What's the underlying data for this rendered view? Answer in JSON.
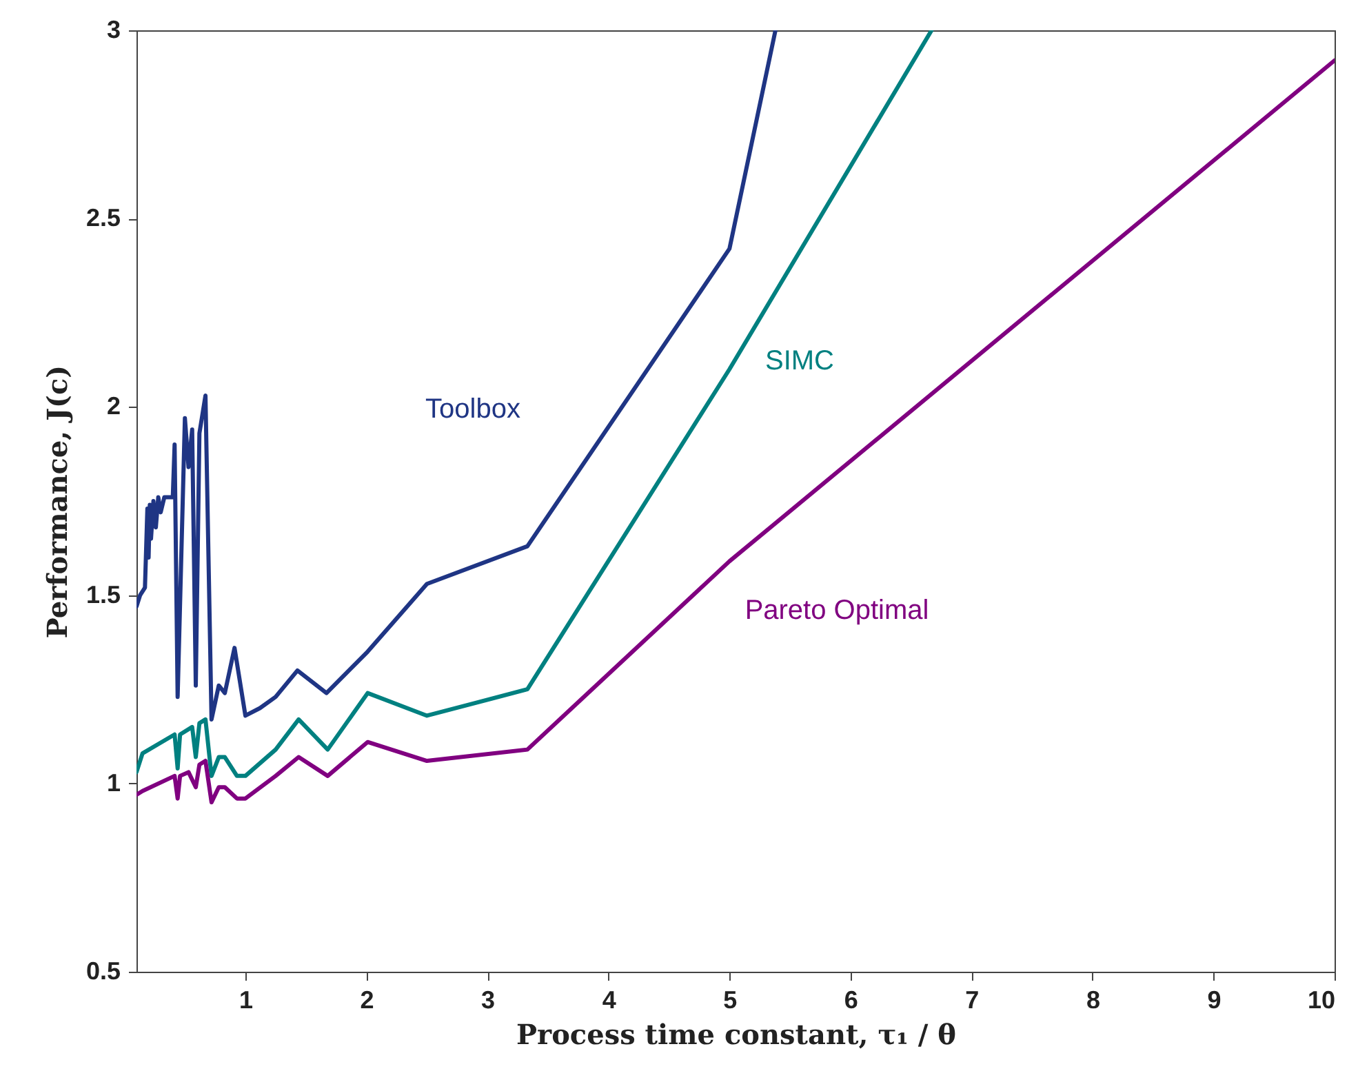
{
  "chart_data": {
    "type": "line",
    "xlabel": "Process time constant, τ₁ / θ",
    "ylabel": "Performance, J(c)",
    "xlim": [
      0.1,
      10
    ],
    "ylim": [
      0.5,
      3
    ],
    "xticks": [
      1,
      2,
      3,
      4,
      5,
      6,
      7,
      8,
      9,
      10
    ],
    "yticks": [
      0.5,
      1,
      1.5,
      2,
      2.5,
      3
    ],
    "grid": false,
    "legend": false,
    "marker": "none",
    "line_style": "solid",
    "series": [
      {
        "name": "Toolbox",
        "color": "#1f3584",
        "x": [
          0.1,
          0.13,
          0.17,
          0.19,
          0.2,
          0.21,
          0.22,
          0.24,
          0.26,
          0.28,
          0.3,
          0.33,
          0.4,
          0.415,
          0.44,
          0.5,
          0.53,
          0.56,
          0.59,
          0.62,
          0.67,
          0.72,
          0.78,
          0.83,
          0.91,
          1.0,
          1.12,
          1.25,
          1.43,
          1.67,
          2.01,
          2.5,
          3.33,
          5.0,
          5.38
        ],
        "values": [
          1.47,
          1.5,
          1.52,
          1.73,
          1.6,
          1.74,
          1.65,
          1.75,
          1.68,
          1.76,
          1.72,
          1.76,
          1.76,
          1.9,
          1.23,
          1.97,
          1.84,
          1.94,
          1.26,
          1.93,
          2.03,
          1.17,
          1.26,
          1.24,
          1.36,
          1.18,
          1.2,
          1.23,
          1.3,
          1.24,
          1.35,
          1.53,
          1.63,
          2.42,
          3.0
        ]
      },
      {
        "name": "SIMC",
        "color": "#008080",
        "x": [
          0.1,
          0.15,
          0.415,
          0.44,
          0.46,
          0.56,
          0.59,
          0.62,
          0.67,
          0.72,
          0.78,
          0.83,
          0.93,
          1.0,
          1.25,
          1.44,
          1.68,
          2.01,
          2.5,
          3.33,
          5.0,
          6.67
        ],
        "values": [
          1.03,
          1.08,
          1.13,
          1.04,
          1.13,
          1.15,
          1.07,
          1.16,
          1.17,
          1.02,
          1.07,
          1.07,
          1.02,
          1.02,
          1.09,
          1.17,
          1.09,
          1.24,
          1.18,
          1.25,
          2.1,
          3.0
        ]
      },
      {
        "name": "Pareto Optimal",
        "color": "#800080",
        "x": [
          0.1,
          0.15,
          0.415,
          0.44,
          0.46,
          0.53,
          0.59,
          0.62,
          0.67,
          0.72,
          0.78,
          0.83,
          0.93,
          1.0,
          1.25,
          1.44,
          1.68,
          2.01,
          2.5,
          3.33,
          5.0,
          10.0
        ],
        "values": [
          0.97,
          0.98,
          1.02,
          0.96,
          1.02,
          1.03,
          0.99,
          1.05,
          1.06,
          0.95,
          0.99,
          0.99,
          0.96,
          0.96,
          1.02,
          1.07,
          1.02,
          1.11,
          1.06,
          1.09,
          1.59,
          2.92
        ]
      }
    ]
  }
}
